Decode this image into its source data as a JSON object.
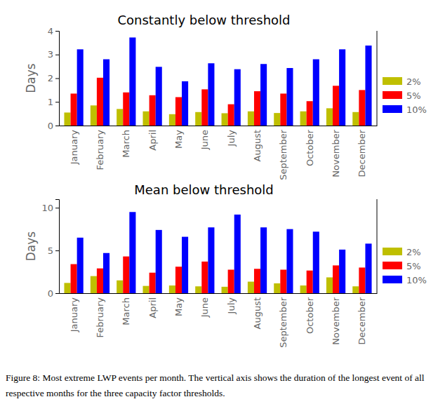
{
  "chart_data": [
    {
      "type": "bar",
      "title": "Constantly below threshold",
      "y_label": "Days",
      "categories": [
        "January",
        "February",
        "March",
        "April",
        "May",
        "June",
        "July",
        "August",
        "September",
        "October",
        "November",
        "December"
      ],
      "series": [
        {
          "name": "2%",
          "color": "#bfbf00",
          "values": [
            0.55,
            0.85,
            0.7,
            0.6,
            0.48,
            0.57,
            0.52,
            0.6,
            0.53,
            0.6,
            0.73,
            0.57
          ]
        },
        {
          "name": "5%",
          "color": "#ff0000",
          "values": [
            1.35,
            2.02,
            1.4,
            1.28,
            1.2,
            1.53,
            0.9,
            1.45,
            1.35,
            1.03,
            1.68,
            1.5
          ]
        },
        {
          "name": "10%",
          "color": "#0000ff",
          "values": [
            3.22,
            2.8,
            3.72,
            2.48,
            1.87,
            2.63,
            2.38,
            2.6,
            2.43,
            2.8,
            3.22,
            3.38
          ]
        }
      ],
      "ylim": [
        0,
        4
      ],
      "yticks": [
        0,
        1,
        2,
        3,
        4
      ],
      "grid": false,
      "legend": "right"
    },
    {
      "type": "bar",
      "title": "Mean below threshold",
      "y_label": "Days",
      "categories": [
        "January",
        "February",
        "March",
        "April",
        "May",
        "June",
        "July",
        "August",
        "September",
        "October",
        "November",
        "December"
      ],
      "series": [
        {
          "name": "2%",
          "color": "#bfbf00",
          "values": [
            1.2,
            2.0,
            1.5,
            0.85,
            0.9,
            0.8,
            0.75,
            1.35,
            1.15,
            0.9,
            1.85,
            0.8
          ]
        },
        {
          "name": "5%",
          "color": "#ff0000",
          "values": [
            3.4,
            2.9,
            4.3,
            2.4,
            3.1,
            3.7,
            2.75,
            2.85,
            2.75,
            2.65,
            3.25,
            3.0
          ]
        },
        {
          "name": "10%",
          "color": "#0000ff",
          "values": [
            6.5,
            4.7,
            9.5,
            7.4,
            6.6,
            7.7,
            9.2,
            7.7,
            7.5,
            7.2,
            5.1,
            5.8
          ]
        }
      ],
      "ylim": [
        0,
        11
      ],
      "yticks": [
        0,
        5,
        10
      ],
      "grid": false,
      "legend": "right"
    }
  ],
  "caption": "Figure 8: Most extreme LWP events per month. The vertical axis shows the duration of the longest event of all respective months for the three capacity factor thresholds."
}
